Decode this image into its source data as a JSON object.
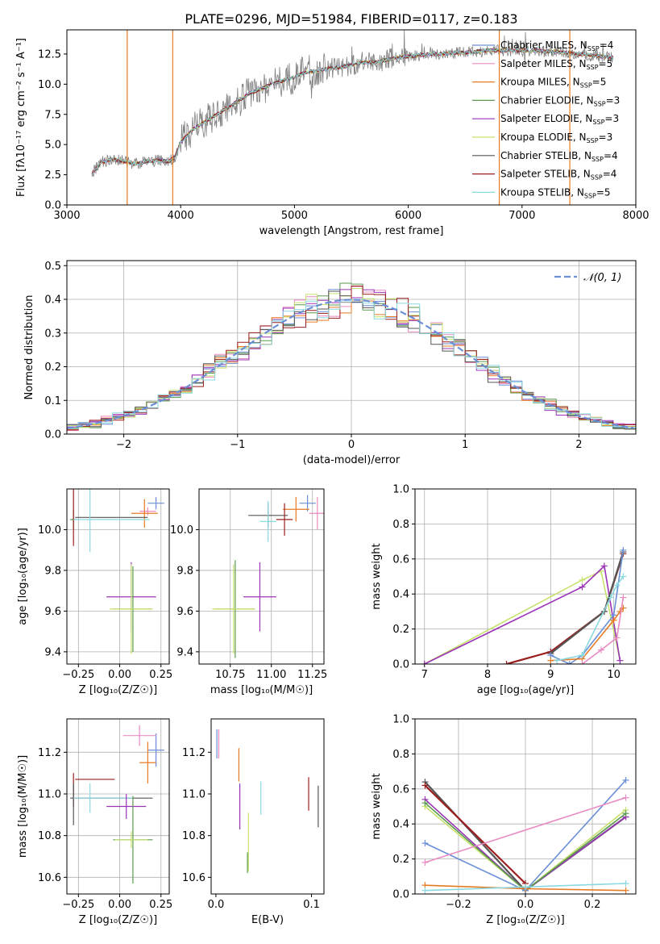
{
  "figure_title": "PLATE=0296, MJD=51984, FIBERID=0117, z=0.183",
  "colors": {
    "chabrier_miles": "#6a8fd6",
    "salpeter_miles": "#e98bc3",
    "kroupa_miles": "#e77b24",
    "chabrier_elodie": "#5b9a4e",
    "salpeter_elodie": "#9b34b8",
    "kroupa_elodie": "#c8e26e",
    "chabrier_stelib": "#555555",
    "salpeter_stelib": "#9b1f1f",
    "kroupa_stelib": "#8ad8e0",
    "gaussian": "#6a8fd6",
    "data": "#808080"
  },
  "chart_data": [
    {
      "id": "spectrum",
      "type": "line",
      "xlabel": "wavelength [Angstrom, rest frame]",
      "ylabel": "Flux [fλ10⁻¹⁷ erg cm⁻² s⁻¹ A⁻¹]",
      "xlim": [
        3000,
        8000
      ],
      "ylim": [
        0,
        14.5
      ],
      "xticks": [
        3000,
        4000,
        5000,
        6000,
        7000,
        8000
      ],
      "yticks": [
        0.0,
        2.5,
        5.0,
        7.5,
        10.0,
        12.5
      ],
      "legend": "top-right",
      "continuum": {
        "x": [
          3220,
          3300,
          3400,
          3500,
          3600,
          3700,
          3800,
          3900,
          3950,
          4000,
          4100,
          4200,
          4300,
          4400,
          4500,
          4600,
          4700,
          4800,
          4900,
          5000,
          5100,
          5200,
          5300,
          5400,
          5500,
          5600,
          5700,
          5800,
          5900,
          6000,
          6100,
          6200,
          6300,
          6400,
          6500,
          6600,
          6700,
          6800,
          6900,
          7000,
          7100,
          7200,
          7300,
          7400,
          7500,
          7600,
          7700,
          7800
        ],
        "y": [
          2.6,
          3.5,
          3.8,
          3.6,
          3.4,
          3.6,
          3.7,
          3.6,
          4.0,
          5.2,
          6.2,
          6.8,
          7.4,
          8.0,
          8.6,
          9.2,
          9.6,
          10.0,
          10.3,
          10.6,
          11.0,
          11.1,
          11.3,
          11.4,
          11.6,
          11.8,
          11.8,
          12.0,
          12.2,
          12.3,
          12.4,
          12.5,
          12.5,
          12.6,
          12.6,
          12.7,
          12.8,
          12.8,
          12.8,
          12.8,
          12.8,
          12.7,
          12.7,
          12.6,
          12.5,
          12.4,
          12.3,
          12.2
        ]
      },
      "series": [
        {
          "name": "Chabrier MILES, N_SSP=4",
          "label": "Chabrier MILES, N",
          "sub": "SSP",
          "suffix": "=4",
          "color": "chabrier_miles"
        },
        {
          "name": "Salpeter MILES, N_SSP=5",
          "label": "Salpeter MILES, N",
          "sub": "SSP",
          "suffix": "=5",
          "color": "salpeter_miles"
        },
        {
          "name": "Kroupa MILES, N_SSP=5",
          "label": "Kroupa MILES, N",
          "sub": "SSP",
          "suffix": "=5",
          "color": "kroupa_miles"
        },
        {
          "name": "Chabrier ELODIE, N_SSP=3",
          "label": "Chabrier ELODIE, N",
          "sub": "SSP",
          "suffix": "=3",
          "color": "chabrier_elodie"
        },
        {
          "name": "Salpeter ELODIE, N_SSP=3",
          "label": "Salpeter ELODIE, N",
          "sub": "SSP",
          "suffix": "=3",
          "color": "salpeter_elodie"
        },
        {
          "name": "Kroupa ELODIE, N_SSP=3",
          "label": "Kroupa ELODIE, N",
          "sub": "SSP",
          "suffix": "=3",
          "color": "kroupa_elodie"
        },
        {
          "name": "Chabrier STELIB, N_SSP=4",
          "label": "Chabrier STELIB, N",
          "sub": "SSP",
          "suffix": "=4",
          "color": "chabrier_stelib"
        },
        {
          "name": "Salpeter STELIB, N_SSP=4",
          "label": "Salpeter STELIB, N",
          "sub": "SSP",
          "suffix": "=4",
          "color": "salpeter_stelib"
        },
        {
          "name": "Kroupa STELIB, N_SSP=5",
          "label": "Kroupa STELIB, N",
          "sub": "SSP",
          "suffix": "=5",
          "color": "kroupa_stelib"
        }
      ],
      "vertical_features": [
        {
          "x": 3530,
          "color": "kroupa_miles"
        },
        {
          "x": 3930,
          "color": "kroupa_miles"
        },
        {
          "x": 6800,
          "color": "kroupa_miles"
        },
        {
          "x": 7420,
          "color": "kroupa_miles"
        }
      ]
    },
    {
      "id": "residuals",
      "type": "bar",
      "xlabel": "(data-model)/error",
      "ylabel": "Normed distribution",
      "xlim": [
        -2.5,
        2.5
      ],
      "ylim": [
        0,
        0.515
      ],
      "xticks": [
        -2,
        -1,
        0,
        1,
        2
      ],
      "xtick_labels": [
        "−2",
        "−1",
        "0",
        "1",
        "2"
      ],
      "yticks": [
        0.0,
        0.1,
        0.2,
        0.3,
        0.4,
        0.5
      ],
      "grid": true,
      "legend": "top-right",
      "gaussian_label": "𝒩(0, 1)",
      "bin_width": 0.1,
      "hist_colors": [
        "chabrier_miles",
        "salpeter_miles",
        "kroupa_miles",
        "chabrier_elodie",
        "salpeter_elodie",
        "kroupa_elodie",
        "chabrier_stelib",
        "salpeter_stelib",
        "kroupa_stelib"
      ]
    },
    {
      "id": "age_vs_Z",
      "type": "scatter",
      "xlabel": "Z [log₁₀(Z/Z☉)]",
      "ylabel": "age  [log₁₀(age/yr)]",
      "xlim": [
        -0.32,
        0.3
      ],
      "ylim": [
        9.34,
        10.2
      ],
      "xticks": [
        -0.25,
        0.0,
        0.25
      ],
      "xtick_labels": [
        "−0.25",
        "0.00",
        "0.25"
      ],
      "yticks": [
        9.4,
        9.6,
        9.8,
        10.0
      ],
      "grid": true,
      "points": [
        {
          "x": 0.22,
          "y": 10.13,
          "xerr": 0.05,
          "yerr": 0.03,
          "color": "chabrier_miles"
        },
        {
          "x": 0.17,
          "y": 10.09,
          "xerr": 0.05,
          "yerr": 0.02,
          "color": "salpeter_miles"
        },
        {
          "x": 0.15,
          "y": 10.08,
          "xerr": 0.08,
          "yerr": 0.07,
          "color": "kroupa_miles"
        },
        {
          "x": -0.28,
          "y": 10.05,
          "xerr": 0.02,
          "yerr": 0.05,
          "color": "chabrier_elodie"
        },
        {
          "x": -0.28,
          "y": 10.07,
          "xerr": 0.0,
          "yerr": 0.15,
          "color": "salpeter_stelib"
        },
        {
          "x": -0.05,
          "y": 10.06,
          "xerr": 0.22,
          "yerr": 0.0,
          "color": "chabrier_stelib"
        },
        {
          "x": -0.05,
          "y": 10.05,
          "xerr": 0.23,
          "yerr": 0.0,
          "color": "kroupa_stelib"
        },
        {
          "x": -0.18,
          "y": 10.05,
          "xerr": 0.0,
          "yerr": 0.16,
          "color": "kroupa_stelib"
        },
        {
          "x": 0.07,
          "y": 9.67,
          "xerr": 0.15,
          "yerr": 0.17,
          "color": "salpeter_elodie"
        },
        {
          "x": 0.08,
          "y": 9.61,
          "xerr": 0.12,
          "yerr": 0.21,
          "color": "chabrier_elodie"
        },
        {
          "x": 0.07,
          "y": 9.61,
          "xerr": 0.13,
          "yerr": 0.22,
          "color": "kroupa_elodie"
        }
      ]
    },
    {
      "id": "age_vs_mass",
      "type": "scatter",
      "xlabel": "mass [log₁₀(M/M☉)]",
      "ylabel": "",
      "xlim": [
        10.56,
        11.32
      ],
      "ylim": [
        9.34,
        10.2
      ],
      "xticks": [
        10.75,
        11.0,
        11.25
      ],
      "xtick_labels": [
        "10.75",
        "11.00",
        "11.25"
      ],
      "yticks": [
        9.4,
        9.6,
        9.8,
        10.0
      ],
      "grid": true,
      "points": [
        {
          "x": 11.22,
          "y": 10.13,
          "xerr": 0.05,
          "yerr": 0.04,
          "color": "chabrier_miles"
        },
        {
          "x": 11.28,
          "y": 10.08,
          "xerr": 0.05,
          "yerr": 0.08,
          "color": "salpeter_miles"
        },
        {
          "x": 11.15,
          "y": 10.1,
          "xerr": 0.08,
          "yerr": 0.06,
          "color": "kroupa_miles"
        },
        {
          "x": 10.98,
          "y": 10.07,
          "xerr": 0.12,
          "yerr": 0.06,
          "color": "chabrier_stelib"
        },
        {
          "x": 11.08,
          "y": 10.05,
          "xerr": 0.05,
          "yerr": 0.08,
          "color": "salpeter_stelib"
        },
        {
          "x": 10.98,
          "y": 10.04,
          "xerr": 0.05,
          "yerr": 0.1,
          "color": "kroupa_stelib"
        },
        {
          "x": 10.93,
          "y": 9.67,
          "xerr": 0.1,
          "yerr": 0.17,
          "color": "salpeter_elodie"
        },
        {
          "x": 10.78,
          "y": 9.61,
          "xerr": 0.12,
          "yerr": 0.24,
          "color": "chabrier_elodie"
        },
        {
          "x": 10.77,
          "y": 9.61,
          "xerr": 0.13,
          "yerr": 0.22,
          "color": "kroupa_elodie"
        }
      ]
    },
    {
      "id": "mass_weight_vs_age",
      "type": "line",
      "xlabel": "age  [log₁₀(age/yr)]",
      "ylabel": "mass weight",
      "xlim": [
        6.85,
        10.35
      ],
      "ylim": [
        0.0,
        1.0
      ],
      "xticks": [
        7,
        8,
        9,
        10
      ],
      "yticks": [
        0.0,
        0.2,
        0.4,
        0.6,
        0.8,
        1.0
      ],
      "grid": true,
      "series": [
        {
          "color": "kroupa_elodie",
          "x": [
            7.0,
            9.5,
            9.8,
            10.1
          ],
          "y": [
            0.0,
            0.48,
            0.53,
            0.02
          ]
        },
        {
          "color": "salpeter_elodie",
          "x": [
            7.0,
            9.5,
            9.85,
            10.1
          ],
          "y": [
            0.0,
            0.44,
            0.56,
            0.02
          ]
        },
        {
          "color": "salpeter_stelib",
          "x": [
            8.3,
            9.0,
            9.85,
            10.15
          ],
          "y": [
            0.0,
            0.07,
            0.3,
            0.63
          ]
        },
        {
          "color": "chabrier_stelib",
          "x": [
            9.0,
            9.85,
            10.15
          ],
          "y": [
            0.06,
            0.3,
            0.64
          ]
        },
        {
          "color": "chabrier_miles",
          "x": [
            9.0,
            9.3,
            9.5,
            10.0,
            10.15
          ],
          "y": [
            0.05,
            0.0,
            0.05,
            0.28,
            0.65
          ]
        },
        {
          "color": "kroupa_miles",
          "x": [
            9.0,
            9.5,
            10.0,
            10.1,
            10.15
          ],
          "y": [
            0.02,
            0.03,
            0.25,
            0.3,
            0.32
          ]
        },
        {
          "color": "kroupa_stelib",
          "x": [
            9.1,
            9.5,
            9.95,
            10.05,
            10.15
          ],
          "y": [
            0.02,
            0.05,
            0.38,
            0.45,
            0.5
          ]
        },
        {
          "color": "salpeter_miles",
          "x": [
            9.5,
            9.8,
            10.05,
            10.15
          ],
          "y": [
            0.0,
            0.08,
            0.15,
            0.38
          ]
        }
      ]
    },
    {
      "id": "mass_vs_Z",
      "type": "scatter",
      "xlabel": "Z [log₁₀(Z/Z☉)]",
      "ylabel": "mass [log₁₀(M/M☉)]",
      "xlim": [
        -0.32,
        0.3
      ],
      "ylim": [
        10.52,
        11.36
      ],
      "xticks": [
        -0.25,
        0.0,
        0.25
      ],
      "xtick_labels": [
        "−0.25",
        "0.00",
        "0.25"
      ],
      "yticks": [
        10.6,
        10.8,
        11.0,
        11.2
      ],
      "grid": true,
      "points": [
        {
          "x": 0.22,
          "y": 11.21,
          "xerr": 0.05,
          "yerr": 0.08,
          "color": "chabrier_miles"
        },
        {
          "x": 0.12,
          "y": 11.28,
          "xerr": 0.1,
          "yerr": 0.05,
          "color": "salpeter_miles"
        },
        {
          "x": 0.17,
          "y": 11.15,
          "xerr": 0.05,
          "yerr": 0.1,
          "color": "kroupa_miles"
        },
        {
          "x": -0.15,
          "y": 11.07,
          "xerr": 0.12,
          "yerr": 0.0,
          "color": "salpeter_stelib"
        },
        {
          "x": -0.28,
          "y": 11.02,
          "xerr": 0.0,
          "yerr": 0.08,
          "color": "salpeter_stelib"
        },
        {
          "x": -0.05,
          "y": 10.98,
          "xerr": 0.25,
          "yerr": 0.0,
          "color": "chabrier_stelib"
        },
        {
          "x": -0.28,
          "y": 10.95,
          "xerr": 0.0,
          "yerr": 0.1,
          "color": "chabrier_stelib"
        },
        {
          "x": -0.1,
          "y": 10.98,
          "xerr": 0.18,
          "yerr": 0.0,
          "color": "kroupa_stelib"
        },
        {
          "x": -0.18,
          "y": 10.98,
          "xerr": 0.0,
          "yerr": 0.07,
          "color": "kroupa_stelib"
        },
        {
          "x": 0.04,
          "y": 10.94,
          "xerr": 0.12,
          "yerr": 0.06,
          "color": "salpeter_elodie"
        },
        {
          "x": 0.08,
          "y": 10.78,
          "xerr": 0.12,
          "yerr": 0.21,
          "color": "chabrier_elodie"
        },
        {
          "x": 0.07,
          "y": 10.78,
          "xerr": 0.1,
          "yerr": 0.04,
          "color": "kroupa_elodie"
        }
      ]
    },
    {
      "id": "mass_vs_ebv",
      "type": "scatter",
      "xlabel": "E(B-V)",
      "ylabel": "",
      "xlim": [
        -0.005,
        0.113
      ],
      "ylim": [
        10.52,
        11.36
      ],
      "xticks": [
        0.0,
        0.1
      ],
      "xtick_labels": [
        "0.0",
        "0.1"
      ],
      "yticks": [
        10.6,
        10.8,
        11.0,
        11.2
      ],
      "grid": false,
      "points": [
        {
          "x": 0.001,
          "y": 11.24,
          "xerr": 0.0,
          "yerr": 0.07,
          "color": "chabrier_miles"
        },
        {
          "x": 0.003,
          "y": 11.24,
          "xerr": 0.0,
          "yerr": 0.07,
          "color": "salpeter_miles"
        },
        {
          "x": 0.024,
          "y": 11.14,
          "xerr": 0.0,
          "yerr": 0.08,
          "color": "kroupa_miles"
        },
        {
          "x": 0.097,
          "y": 11.0,
          "xerr": 0.0,
          "yerr": 0.08,
          "color": "salpeter_stelib"
        },
        {
          "x": 0.107,
          "y": 10.94,
          "xerr": 0.0,
          "yerr": 0.1,
          "color": "chabrier_stelib"
        },
        {
          "x": 0.047,
          "y": 10.98,
          "xerr": 0.0,
          "yerr": 0.08,
          "color": "kroupa_stelib"
        },
        {
          "x": 0.025,
          "y": 10.94,
          "xerr": 0.0,
          "yerr": 0.11,
          "color": "salpeter_elodie"
        },
        {
          "x": 0.034,
          "y": 10.77,
          "xerr": 0.0,
          "yerr": 0.14,
          "color": "kroupa_elodie"
        },
        {
          "x": 0.033,
          "y": 10.67,
          "xerr": 0.0,
          "yerr": 0.05,
          "color": "chabrier_elodie"
        }
      ]
    },
    {
      "id": "mass_weight_vs_Z",
      "type": "line",
      "xlabel": "Z [log₁₀(Z/Z☉)]",
      "ylabel": "mass weight",
      "xlim": [
        -0.33,
        0.33
      ],
      "ylim": [
        0.0,
        1.0
      ],
      "xticks": [
        -0.2,
        0.0,
        0.2
      ],
      "xtick_labels": [
        "−0.2",
        "0.0",
        "0.2"
      ],
      "yticks": [
        0.0,
        0.2,
        0.4,
        0.6,
        0.8,
        1.0
      ],
      "grid": true,
      "series": [
        {
          "color": "chabrier_stelib",
          "x": [
            -0.3,
            0.0,
            0.3
          ],
          "y": [
            0.64,
            0.02,
            0.44
          ]
        },
        {
          "color": "salpeter_stelib",
          "x": [
            -0.3,
            0.0
          ],
          "y": [
            0.62,
            0.06
          ]
        },
        {
          "color": "salpeter_elodie",
          "x": [
            -0.3,
            0.0,
            0.3
          ],
          "y": [
            0.54,
            0.02,
            0.44
          ]
        },
        {
          "color": "kroupa_elodie",
          "x": [
            -0.3,
            0.0,
            0.3
          ],
          "y": [
            0.5,
            0.02,
            0.48
          ]
        },
        {
          "color": "chabrier_elodie",
          "x": [
            -0.3,
            0.0,
            0.3
          ],
          "y": [
            0.52,
            0.02,
            0.46
          ]
        },
        {
          "color": "chabrier_miles",
          "x": [
            -0.3,
            0.0,
            0.3
          ],
          "y": [
            0.29,
            0.02,
            0.65
          ]
        },
        {
          "color": "salpeter_miles",
          "x": [
            -0.3,
            0.3
          ],
          "y": [
            0.18,
            0.55
          ]
        },
        {
          "color": "kroupa_miles",
          "x": [
            -0.3,
            0.0,
            0.3
          ],
          "y": [
            0.05,
            0.03,
            0.02
          ]
        },
        {
          "color": "kroupa_stelib",
          "x": [
            -0.3,
            0.0,
            0.3
          ],
          "y": [
            0.02,
            0.04,
            0.06
          ]
        }
      ]
    }
  ]
}
